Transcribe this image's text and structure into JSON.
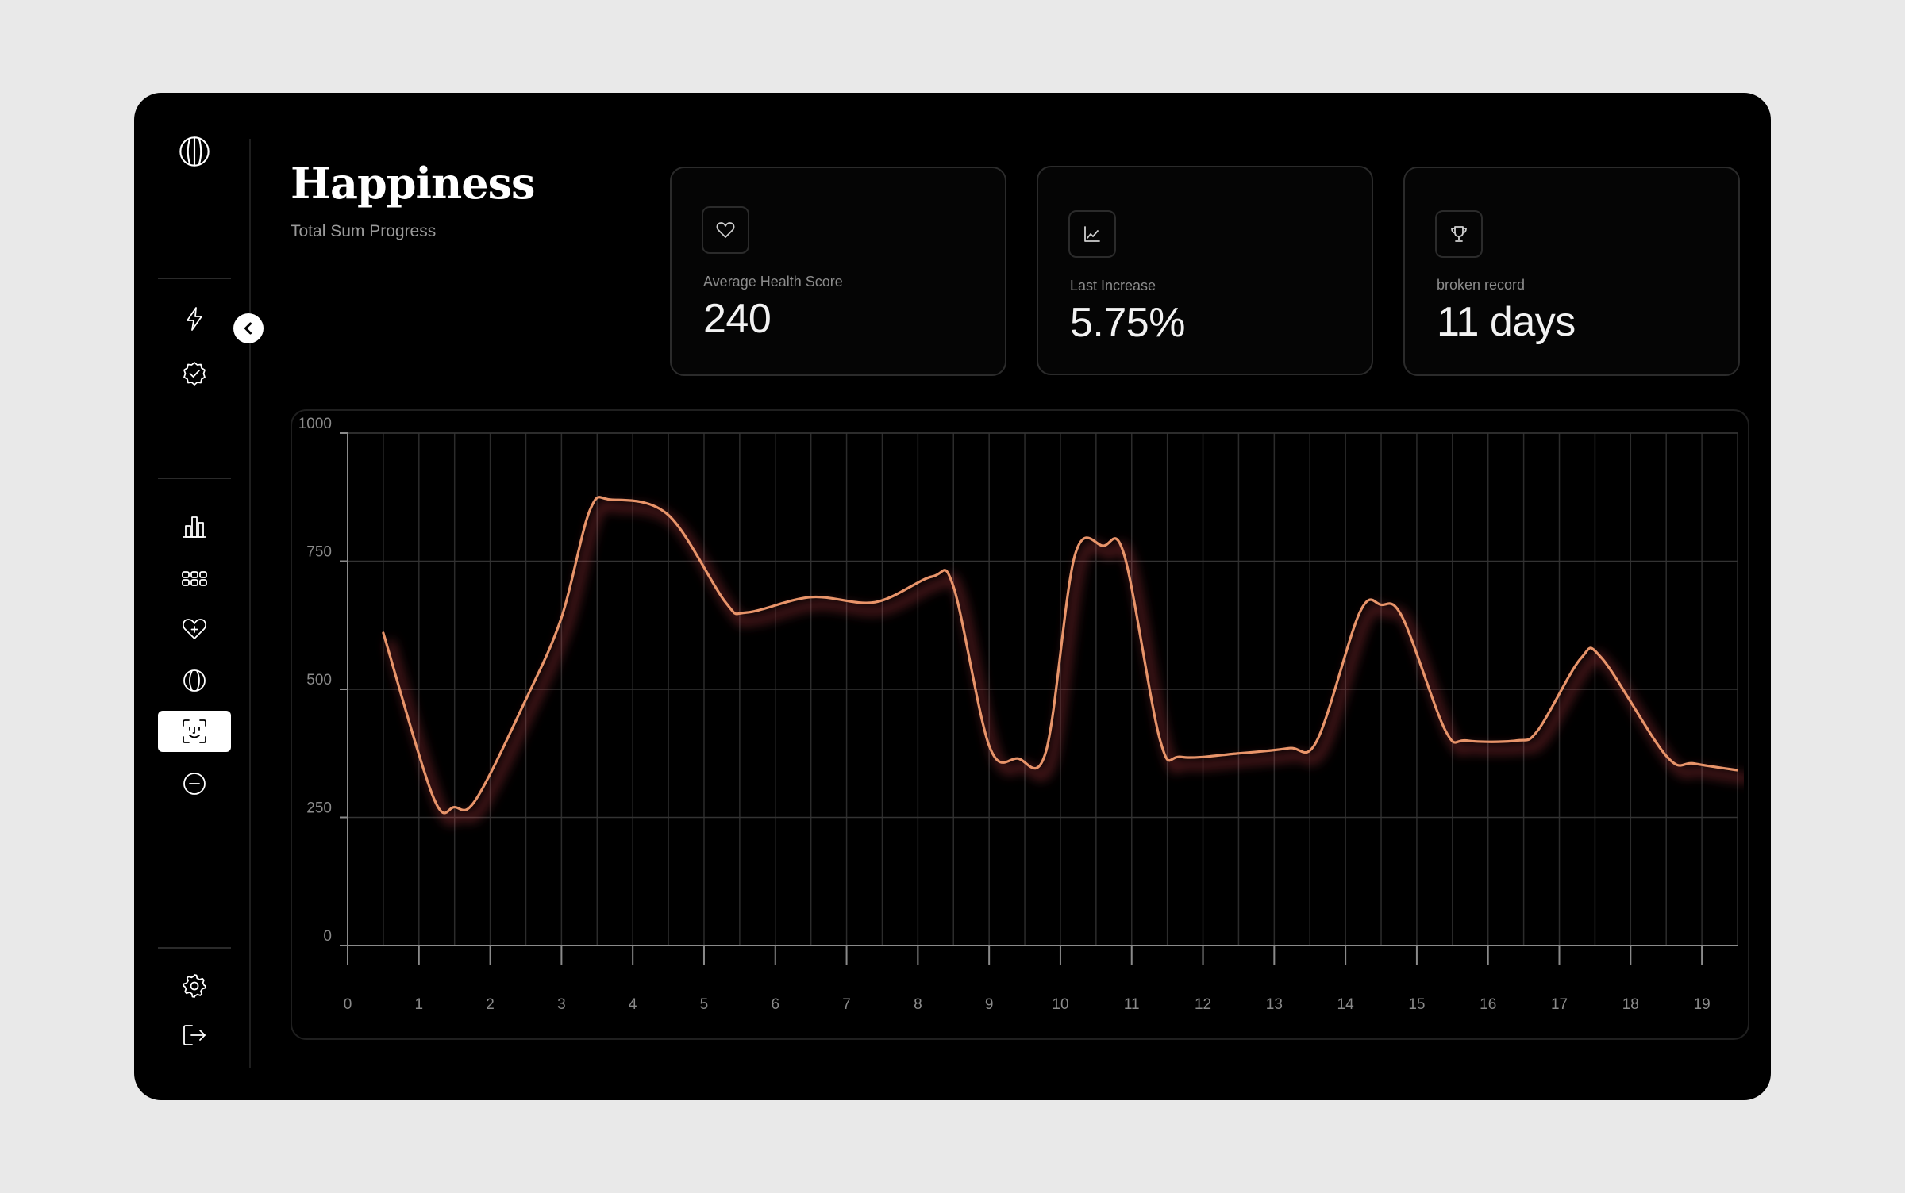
{
  "header": {
    "title": "Happiness",
    "subtitle": "Total Sum Progress"
  },
  "sidebar": {
    "top_icons": [
      "lightning-icon",
      "verified-check-icon"
    ],
    "main_icons": [
      "bar-chart-icon",
      "grid-icon",
      "heart-plus-icon",
      "globe-icon",
      "face-scan-icon",
      "minus-circle-icon"
    ],
    "active": "face-scan-icon",
    "bottom_icons": [
      "settings-icon",
      "logout-icon"
    ]
  },
  "cards": [
    {
      "icon": "heart-icon",
      "label": "Average Health Score",
      "value": "240"
    },
    {
      "icon": "line-chart-icon",
      "label": "Last Increase",
      "value": "5.75%"
    },
    {
      "icon": "trophy-icon",
      "label": "broken record",
      "value": "11 days"
    }
  ],
  "colors": {
    "background": "#000000",
    "line": "#e8946a",
    "glow": "#ff4d5a"
  },
  "chart_data": {
    "type": "line",
    "title": "",
    "xlabel": "",
    "ylabel": "",
    "ylim": [
      0,
      1000
    ],
    "xlim": [
      0,
      19.5
    ],
    "yticks": [
      0,
      250,
      500,
      750,
      1000
    ],
    "xticks": [
      0,
      1,
      2,
      3,
      4,
      5,
      6,
      7,
      8,
      9,
      10,
      11,
      12,
      13,
      14,
      15,
      16,
      17,
      18,
      19
    ],
    "grid": true,
    "series": [
      {
        "values": [
          [
            0.5,
            610
          ],
          [
            1.2,
            290
          ],
          [
            1.5,
            270
          ],
          [
            1.8,
            285
          ],
          [
            2.5,
            480
          ],
          [
            3.0,
            640
          ],
          [
            3.4,
            850
          ],
          [
            3.7,
            870
          ],
          [
            4.5,
            840
          ],
          [
            5.3,
            670
          ],
          [
            5.6,
            650
          ],
          [
            6.5,
            680
          ],
          [
            7.4,
            670
          ],
          [
            8.2,
            720
          ],
          [
            8.5,
            700
          ],
          [
            9.0,
            390
          ],
          [
            9.4,
            365
          ],
          [
            9.8,
            380
          ],
          [
            10.2,
            760
          ],
          [
            10.6,
            780
          ],
          [
            10.9,
            760
          ],
          [
            11.4,
            400
          ],
          [
            11.7,
            368
          ],
          [
            12.5,
            375
          ],
          [
            13.2,
            385
          ],
          [
            13.6,
            400
          ],
          [
            14.2,
            650
          ],
          [
            14.5,
            665
          ],
          [
            14.8,
            640
          ],
          [
            15.4,
            420
          ],
          [
            15.7,
            400
          ],
          [
            16.4,
            400
          ],
          [
            16.7,
            420
          ],
          [
            17.3,
            560
          ],
          [
            17.6,
            560
          ],
          [
            18.5,
            370
          ],
          [
            18.9,
            355
          ],
          [
            19.6,
            340
          ]
        ]
      }
    ]
  }
}
